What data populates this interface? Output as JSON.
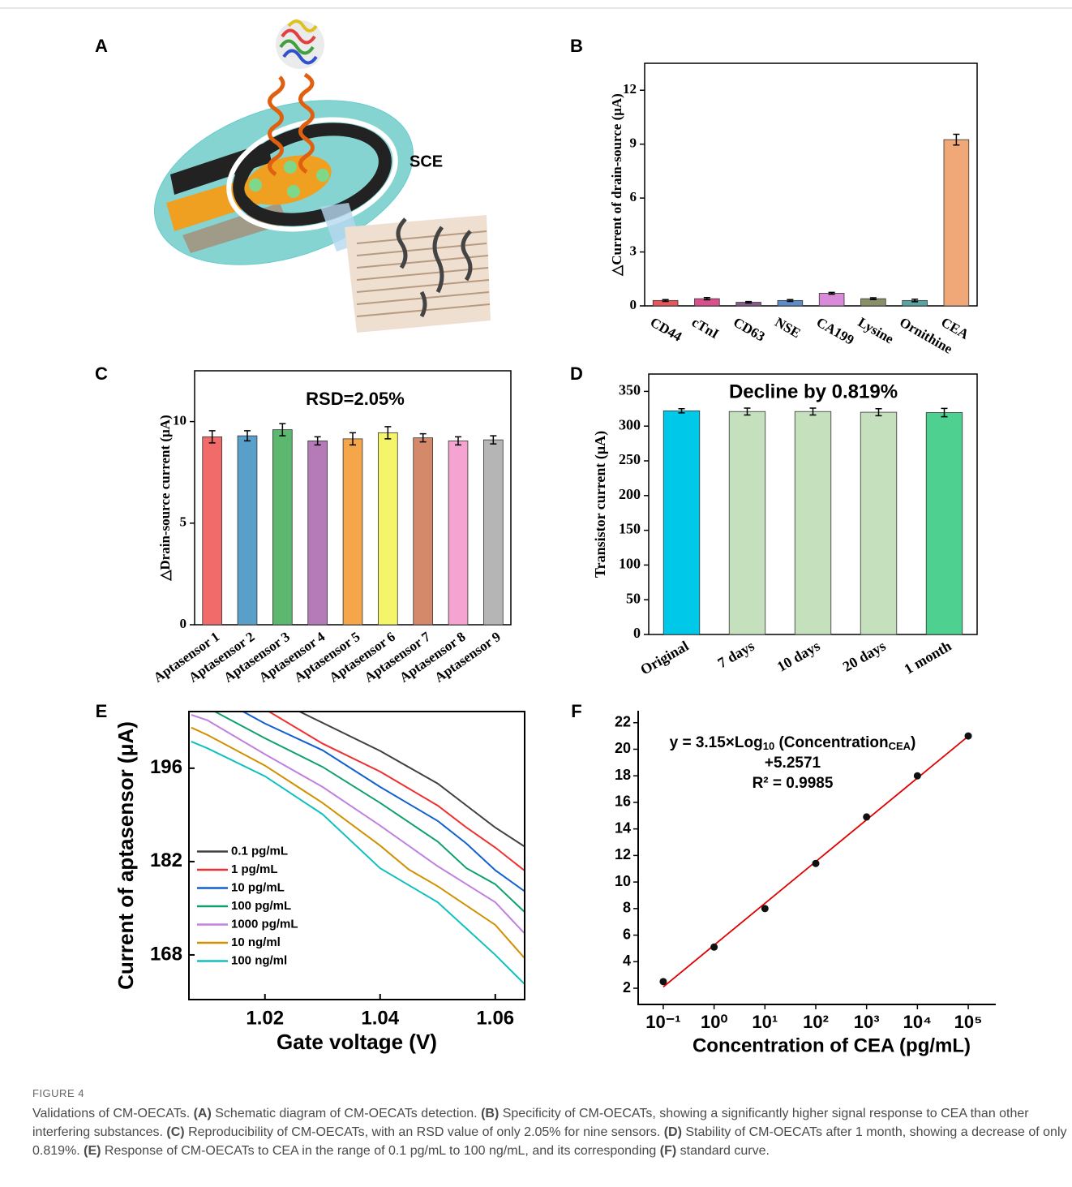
{
  "schematic": {
    "label": "A",
    "text": "SCE"
  },
  "chart_data": [
    {
      "type": "bar",
      "panel": "B",
      "ylabel": "△Current of drain-source (μA)",
      "categories": [
        "CD44",
        "cTnI",
        "CD63",
        "NSE",
        "CA199",
        "Lysine",
        "Ornithine",
        "CEA"
      ],
      "values": [
        0.3,
        0.4,
        0.2,
        0.3,
        0.7,
        0.4,
        0.3,
        9.25
      ],
      "errors": [
        0.05,
        0.06,
        0.04,
        0.05,
        0.05,
        0.05,
        0.07,
        0.3
      ],
      "colors": [
        "#e8555a",
        "#d9508c",
        "#8c5a8c",
        "#5b8dc9",
        "#d98ad9",
        "#8a8f6a",
        "#5aa3a3",
        "#f0a878"
      ],
      "ylim": [
        0,
        13.5
      ],
      "yticks": [
        0,
        3,
        6,
        9,
        12
      ]
    },
    {
      "type": "bar",
      "panel": "C",
      "ylabel": "△Drain-source current (μA)",
      "annotation": "RSD=2.05%",
      "categories": [
        "Aptasensor 1",
        "Aptasensor 2",
        "Aptasensor 3",
        "Aptasensor 4",
        "Aptasensor 5",
        "Aptasensor 6",
        "Aptasensor 7",
        "Aptasensor 8",
        "Aptasensor 9"
      ],
      "values": [
        9.25,
        9.3,
        9.6,
        9.05,
        9.15,
        9.45,
        9.2,
        9.05,
        9.1
      ],
      "errors": [
        0.3,
        0.25,
        0.3,
        0.2,
        0.3,
        0.3,
        0.2,
        0.2,
        0.2
      ],
      "colors": [
        "#f26b6b",
        "#5a9fc9",
        "#5cb86e",
        "#b57ab8",
        "#f5a54a",
        "#f5f56b",
        "#d4896a",
        "#f5a3d0",
        "#b5b5b5"
      ],
      "ylim": [
        0,
        12.5
      ],
      "yticks": [
        0,
        5,
        10
      ]
    },
    {
      "type": "bar",
      "panel": "D",
      "ylabel": "Transistor current (μA)",
      "annotation": "Decline by  0.819%",
      "categories": [
        "Original",
        "7 days",
        "10 days",
        "20 days",
        "1 month"
      ],
      "values": [
        322,
        321,
        321,
        320,
        319.5
      ],
      "errors": [
        3,
        5,
        5,
        5,
        6
      ],
      "colors": [
        "#00c8e8",
        "#c5e0bd",
        "#c5e0bd",
        "#c5e0bd",
        "#4dd090"
      ],
      "ylim": [
        0,
        375
      ],
      "yticks": [
        0,
        50,
        100,
        150,
        200,
        250,
        300,
        350
      ]
    },
    {
      "type": "line",
      "panel": "E",
      "xlabel": "Gate voltage (V)",
      "ylabel": "Current of aptasensor (μA)",
      "legend": "center left",
      "xlim": [
        1.0068,
        1.0651
      ],
      "xticks": [
        1.02,
        1.04,
        1.06
      ],
      "ylim": [
        161.3,
        204.5
      ],
      "yticks": [
        168,
        182,
        196
      ],
      "series": [
        {
          "name": "0.1 pg/mL",
          "color": "#404040",
          "x": [
            1.026,
            1.04,
            1.05,
            1.055,
            1.06,
            1.065
          ],
          "values": [
            204.5,
            198.6,
            193.7,
            190.4,
            187.1,
            184.3
          ]
        },
        {
          "name": "1 pg/mL",
          "color": "#f03030",
          "x": [
            1.0207,
            1.03,
            1.04,
            1.05,
            1.055,
            1.06,
            1.065
          ],
          "values": [
            204.5,
            199.7,
            195.5,
            190.4,
            187.1,
            184.1,
            180.7
          ]
        },
        {
          "name": "10 pg/mL",
          "color": "#1060d0",
          "x": [
            1.0162,
            1.02,
            1.03,
            1.04,
            1.05,
            1.055,
            1.06,
            1.065
          ],
          "values": [
            204.5,
            202.7,
            198.7,
            193.2,
            188.1,
            184.7,
            180.7,
            177.6
          ]
        },
        {
          "name": "100 pg/mL",
          "color": "#10a070",
          "x": [
            1.0113,
            1.02,
            1.03,
            1.04,
            1.05,
            1.055,
            1.06,
            1.065
          ],
          "values": [
            204.5,
            200.5,
            196.2,
            190.8,
            185.0,
            181.0,
            178.6,
            174.5
          ]
        },
        {
          "name": "1000 pg/mL",
          "color": "#c080e0",
          "x": [
            1.0072,
            1.01,
            1.02,
            1.03,
            1.04,
            1.05,
            1.055,
            1.06,
            1.065
          ],
          "values": [
            204.0,
            203.2,
            198.1,
            193.2,
            187.4,
            181.3,
            178.6,
            175.9,
            171.3
          ]
        },
        {
          "name": "10 ng/ml",
          "color": "#d09000",
          "x": [
            1.0072,
            1.01,
            1.02,
            1.03,
            1.04,
            1.045,
            1.05,
            1.06,
            1.065
          ],
          "values": [
            202.1,
            201.0,
            196.4,
            190.8,
            184.4,
            180.8,
            178.3,
            172.5,
            167.6
          ]
        },
        {
          "name": "100 ng/ml",
          "color": "#10c0c0",
          "x": [
            1.0072,
            1.01,
            1.02,
            1.03,
            1.04,
            1.05,
            1.06,
            1.065
          ],
          "values": [
            200.0,
            199.0,
            194.8,
            189.1,
            181.0,
            175.9,
            168.0,
            163.7
          ]
        }
      ]
    },
    {
      "type": "scatter",
      "panel": "F",
      "xlabel": "Concentration of CEA (pg/mL)",
      "xscale": "log",
      "color": "#111111",
      "xlim": [
        0.0321,
        348000
      ],
      "xticks": [
        {
          "value": 0.1,
          "label": "10⁻¹"
        },
        {
          "value": 1,
          "label": "10⁰"
        },
        {
          "value": 10,
          "label": "10¹"
        },
        {
          "value": 100,
          "label": "10²"
        },
        {
          "value": 1000,
          "label": "10³"
        },
        {
          "value": 10000,
          "label": "10⁴"
        },
        {
          "value": 100000,
          "label": "10⁵"
        }
      ],
      "ylim": [
        0.78,
        22.9
      ],
      "yticks": [
        2,
        4,
        6,
        8,
        10,
        12,
        14,
        16,
        18,
        20,
        22
      ],
      "x": [
        0.1,
        1,
        10,
        100,
        1000,
        10000,
        100000
      ],
      "values": [
        2.5,
        5.1,
        8.0,
        11.4,
        14.9,
        18.0,
        21.0
      ],
      "fit": {
        "color": "#e00000",
        "x": [
          0.1,
          100000
        ],
        "values": [
          2.1,
          20.98
        ]
      },
      "annotation": [
        [
          {
            "text": "y = 3.15×Log"
          },
          {
            "text": "10",
            "sub": true
          },
          {
            "text": " (Concentration"
          },
          {
            "text": "CEA",
            "sub": true
          },
          {
            "text": ")"
          }
        ],
        [
          {
            "text": "+5.2571"
          }
        ],
        [
          {
            "text": "R² = 0.9985"
          }
        ]
      ]
    }
  ],
  "caption": {
    "figure": "FIGURE 4",
    "parts": [
      {
        "text": "Validations of CM-OECATs. "
      },
      {
        "text": "(A)",
        "bold": true
      },
      {
        "text": " Schematic diagram of CM-OECATs detection. "
      },
      {
        "text": "(B)",
        "bold": true
      },
      {
        "text": " Specificity of CM-OECATs, showing a significantly higher signal response to CEA than other interfering substances. "
      },
      {
        "text": "(C)",
        "bold": true
      },
      {
        "text": " Reproducibility of CM-OECATs, with an RSD value of only 2.05% for nine sensors. "
      },
      {
        "text": "(D)",
        "bold": true
      },
      {
        "text": " Stability of CM-OECATs after 1 month, showing a decrease of only 0.819%. "
      },
      {
        "text": "(E)",
        "bold": true
      },
      {
        "text": " Response of CM-OECATs to CEA in the range of 0.1 pg/mL to 100 ng/mL, and its corresponding "
      },
      {
        "text": "(F)",
        "bold": true
      },
      {
        "text": " standard curve."
      }
    ]
  }
}
